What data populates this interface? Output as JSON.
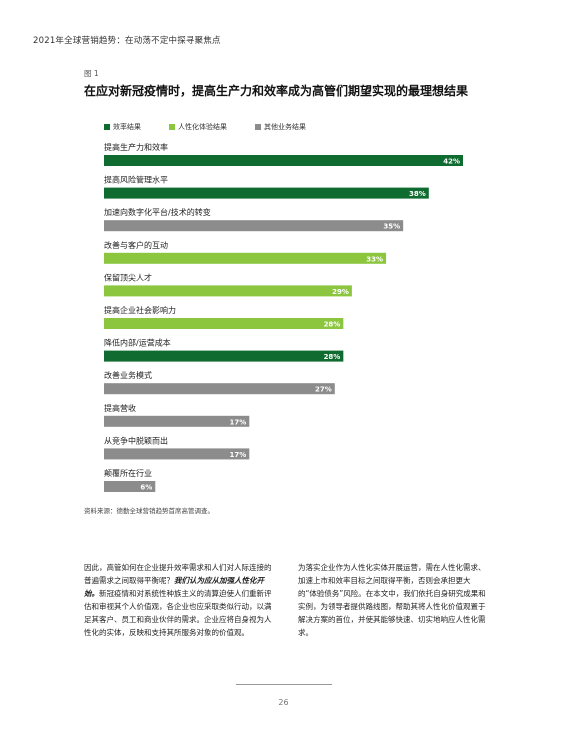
{
  "header": {
    "running_title": "2021年全球营销趋势：在动荡不定中探寻聚焦点"
  },
  "figure": {
    "label": "图 1",
    "title": "在应对新冠疫情时，提高生产力和效率成为高管们期望实现的最理想结果",
    "source": "资料来源：德勤全球营销趋势首席高管调查。"
  },
  "colors": {
    "efficiency": "#0f6b2f",
    "human_experience": "#8cc63f",
    "other_business": "#8c8c8c"
  },
  "chart_data": {
    "type": "bar",
    "orientation": "horizontal",
    "title": "在应对新冠疫情时，提高生产力和效率成为高管们期望实现的最理想结果",
    "legend": [
      {
        "key": "efficiency",
        "label": "效率结果"
      },
      {
        "key": "human_experience",
        "label": "人性化体验结果"
      },
      {
        "key": "other_business",
        "label": "其他业务结果"
      }
    ],
    "legend_position": "top-left",
    "xlim": [
      0,
      42
    ],
    "grid": false,
    "bars": [
      {
        "category": "提高生产力和效率",
        "value": 42,
        "label": "42%",
        "group": "efficiency"
      },
      {
        "category": "提高风险管理水平",
        "value": 38,
        "label": "38%",
        "group": "efficiency"
      },
      {
        "category": "加速向数字化平台/技术的转变",
        "value": 35,
        "label": "35%",
        "group": "other_business"
      },
      {
        "category": "改善与客户的互动",
        "value": 33,
        "label": "33%",
        "group": "human_experience"
      },
      {
        "category": "保留顶尖人才",
        "value": 29,
        "label": "29%",
        "group": "human_experience"
      },
      {
        "category": "提高企业社会影响力",
        "value": 28,
        "label": "28%",
        "group": "human_experience"
      },
      {
        "category": "降低内部/运营成本",
        "value": 28,
        "label": "28%",
        "group": "efficiency"
      },
      {
        "category": "改善业务模式",
        "value": 27,
        "label": "27%",
        "group": "other_business"
      },
      {
        "category": "提高营收",
        "value": 17,
        "label": "17%",
        "group": "other_business"
      },
      {
        "category": "从竞争中脱颖而出",
        "value": 17,
        "label": "17%",
        "group": "other_business"
      },
      {
        "category": "颠覆所在行业",
        "value": 6,
        "label": "6%",
        "group": "other_business"
      }
    ]
  },
  "body_text": {
    "left_pre": "因此，高管如何在企业提升效率需求和人们对人际连接的普遍需求之间取得平衡呢？",
    "left_em": "我们认为应从加强人性化开始。",
    "left_post": "新冠疫情和对系统性种族主义的清算迫使人们重新评估和审视其个人价值观，各企业也应采取类似行动，以满足其客户、员工和商业伙伴的需求。企业应将自身视为人性化的实体，反映和支持其所服务对象的价值观。",
    "right": "为落实企业作为人性化实体开展运营，需在人性化需求、加速上市和效率目标之间取得平衡，否则会承担更大的“体验债务”风险。在本文中，我们依托自身研究成果和实例，为领导者提供路线图，帮助其将人性化价值观置于解决方案的首位，并使其能够快速、切实地响应人性化需求。"
  },
  "footer": {
    "page_number": "26"
  }
}
